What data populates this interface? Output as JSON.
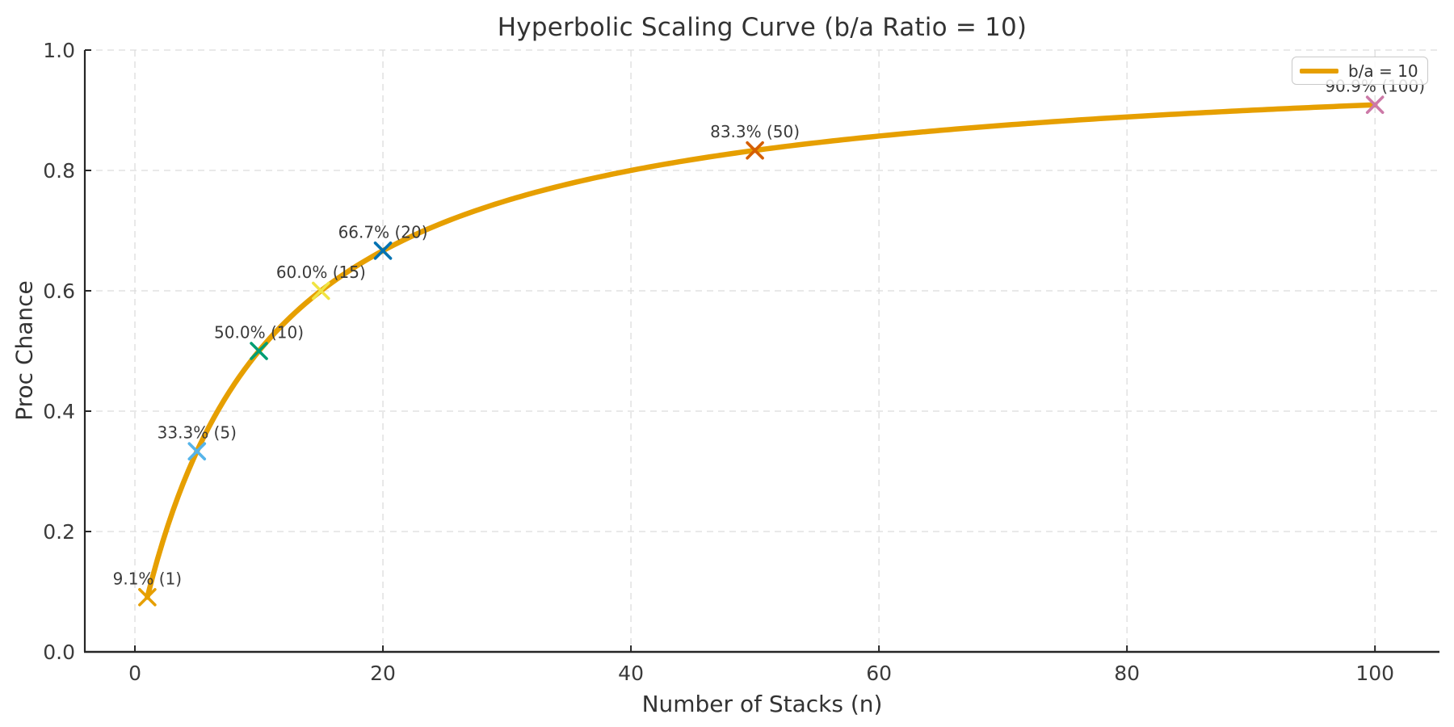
{
  "chart_data": {
    "type": "line",
    "title": "Hyperbolic Scaling Curve (b/a Ratio = 10)",
    "xlabel": "Number of Stacks (n)",
    "ylabel": "Proc Chance",
    "ratio_b_over_a": 10,
    "curve": {
      "formula": "p = n / (n + b_over_a)",
      "n_start": 1,
      "n_end": 100,
      "color": "#E69F00",
      "linewidth": 6.5
    },
    "legend": {
      "position": "upper right",
      "entries": [
        {
          "label": "b/a = 10",
          "color": "#E69F00"
        }
      ]
    },
    "xticks": [
      0,
      20,
      40,
      60,
      80,
      100
    ],
    "ytick_values": [
      0,
      0.2,
      0.4,
      0.6,
      0.8,
      1.0
    ],
    "ytick_labels": [
      "0.0",
      "0.2",
      "0.4",
      "0.6",
      "0.8",
      "1.0"
    ],
    "xlim": [
      -4.04,
      105.2
    ],
    "ylim": [
      0,
      1.0
    ],
    "grid": {
      "on": true,
      "style": "dashed",
      "color": "#dcdcdc"
    },
    "annotated_points": [
      {
        "n": 1,
        "p": 0.0909,
        "label": "9.1% (1)",
        "marker_color": "#E69F00"
      },
      {
        "n": 5,
        "p": 0.3333,
        "label": "33.3% (5)",
        "marker_color": "#56B4E9"
      },
      {
        "n": 10,
        "p": 0.5,
        "label": "50.0% (10)",
        "marker_color": "#009E73"
      },
      {
        "n": 15,
        "p": 0.6,
        "label": "60.0% (15)",
        "marker_color": "#F0E442"
      },
      {
        "n": 20,
        "p": 0.6667,
        "label": "66.7% (20)",
        "marker_color": "#0072B2"
      },
      {
        "n": 50,
        "p": 0.8333,
        "label": "83.3% (50)",
        "marker_color": "#D55E00"
      },
      {
        "n": 100,
        "p": 0.9091,
        "label": "90.9% (100)",
        "marker_color": "#CC79A7"
      }
    ],
    "marker_style": "x",
    "colors": {
      "text": "#333333",
      "tick_label": "#3b3b3b",
      "annotation": "#3a3a3a",
      "spine": "#262626",
      "background": "#ffffff"
    }
  }
}
